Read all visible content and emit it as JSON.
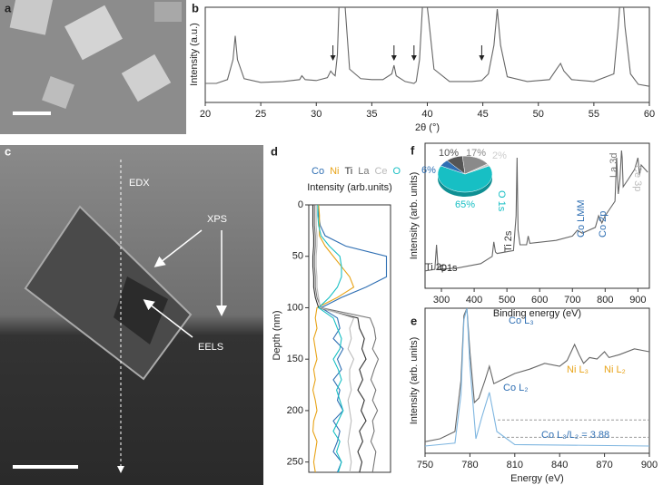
{
  "images": [
    {
      "label": "a"
    },
    {
      "label": "c",
      "annotations": [
        "EDX",
        "XPS",
        "EELS"
      ]
    }
  ],
  "chart_data": [
    {
      "type": "line",
      "panel_label": "b",
      "y_label": "Intensity (a.u.)",
      "x_label": "2θ (°)",
      "xlim": [
        20,
        60
      ],
      "xticks": [
        20,
        25,
        30,
        35,
        40,
        45,
        50,
        55,
        60
      ],
      "ylim": [
        0,
        1
      ],
      "arrows_x": [
        31.5,
        37,
        38.8,
        44.9
      ],
      "series": [
        {
          "color": "#666666",
          "x": [
            20,
            21,
            22,
            22.5,
            22.7,
            22.9,
            23.5,
            25,
            27,
            28.5,
            28.7,
            29,
            30,
            31,
            31.3,
            31.5,
            31.7,
            31.9,
            32.1,
            32.3,
            32.6,
            33,
            34,
            35,
            36,
            36.8,
            37,
            37.2,
            38,
            38.8,
            39,
            39.3,
            39.7,
            40.1,
            40.6,
            42,
            44,
            44.9,
            45.5,
            46,
            46.3,
            46.6,
            47.2,
            49,
            51,
            51.7,
            52,
            52.3,
            53,
            55,
            56.8,
            57.2,
            57.5,
            57.8,
            58.3,
            59,
            60
          ],
          "values": [
            0.2,
            0.2,
            0.24,
            0.45,
            0.7,
            0.45,
            0.25,
            0.21,
            0.22,
            0.24,
            0.28,
            0.24,
            0.23,
            0.26,
            0.33,
            0.3,
            0.28,
            0.5,
            1.2,
            1.3,
            1.0,
            0.35,
            0.25,
            0.24,
            0.24,
            0.3,
            0.39,
            0.28,
            0.22,
            0.2,
            0.22,
            0.45,
            1.3,
            0.9,
            0.35,
            0.22,
            0.22,
            0.23,
            0.3,
            0.6,
            0.98,
            0.6,
            0.27,
            0.22,
            0.24,
            0.36,
            0.41,
            0.33,
            0.24,
            0.22,
            0.3,
            0.8,
            1.3,
            0.8,
            0.3,
            0.19,
            0.17
          ]
        }
      ]
    },
    {
      "type": "line",
      "panel_label": "d",
      "title": "Intensity (arb.units)",
      "y_label": "Depth (nm)",
      "xlim": [
        0,
        1
      ],
      "ylim": [
        0,
        260
      ],
      "yticks": [
        0,
        50,
        100,
        150,
        200,
        250
      ],
      "y": [
        0,
        10,
        20,
        30,
        40,
        50,
        60,
        70,
        80,
        90,
        100,
        110,
        120,
        130,
        140,
        150,
        160,
        170,
        180,
        190,
        200,
        210,
        220,
        230,
        240,
        250,
        260
      ],
      "series": [
        {
          "name": "Co",
          "color": "#2f6fb3",
          "values": [
            0.12,
            0.12,
            0.14,
            0.2,
            0.45,
            0.95,
            0.95,
            0.95,
            0.7,
            0.4,
            0.15,
            0.35,
            0.38,
            0.3,
            0.42,
            0.35,
            0.4,
            0.3,
            0.38,
            0.35,
            0.42,
            0.3,
            0.38,
            0.35,
            0.3,
            0.4,
            0.35
          ]
        },
        {
          "name": "Ni",
          "color": "#e8a317",
          "values": [
            0.12,
            0.13,
            0.13,
            0.13,
            0.2,
            0.3,
            0.4,
            0.5,
            0.55,
            0.35,
            0.1,
            0.08,
            0.1,
            0.06,
            0.08,
            0.1,
            0.06,
            0.08,
            0.05,
            0.08,
            0.1,
            0.06,
            0.05,
            0.1,
            0.08,
            0.06,
            0.08
          ]
        },
        {
          "name": "Ti",
          "color": "#333333",
          "values": [
            0.05,
            0.05,
            0.05,
            0.06,
            0.06,
            0.05,
            0.05,
            0.06,
            0.06,
            0.08,
            0.12,
            0.6,
            0.62,
            0.68,
            0.65,
            0.7,
            0.62,
            0.66,
            0.6,
            0.68,
            0.64,
            0.7,
            0.62,
            0.66,
            0.6,
            0.65,
            0.62
          ]
        },
        {
          "name": "La",
          "color": "#777777",
          "values": [
            0.07,
            0.07,
            0.07,
            0.08,
            0.08,
            0.07,
            0.07,
            0.08,
            0.08,
            0.1,
            0.15,
            0.75,
            0.8,
            0.82,
            0.78,
            0.85,
            0.8,
            0.76,
            0.82,
            0.78,
            0.84,
            0.78,
            0.8,
            0.76,
            0.82,
            0.8,
            0.78
          ]
        },
        {
          "name": "Ce",
          "color": "#bbbbbb",
          "values": [
            0.09,
            0.09,
            0.09,
            0.1,
            0.1,
            0.09,
            0.09,
            0.1,
            0.1,
            0.12,
            0.14,
            0.55,
            0.5,
            0.52,
            0.48,
            0.55,
            0.5,
            0.5,
            0.52,
            0.48,
            0.5,
            0.52,
            0.5,
            0.48,
            0.5,
            0.52,
            0.5
          ]
        },
        {
          "name": "O",
          "color": "#17bfc4",
          "values": [
            0.11,
            0.11,
            0.12,
            0.15,
            0.25,
            0.38,
            0.4,
            0.4,
            0.35,
            0.25,
            0.12,
            0.3,
            0.35,
            0.4,
            0.38,
            0.3,
            0.36,
            0.4,
            0.34,
            0.38,
            0.42,
            0.36,
            0.3,
            0.38,
            0.34,
            0.4,
            0.36
          ]
        }
      ]
    },
    {
      "type": "line",
      "panel_label": "f",
      "y_label": "Intensity (arb. units)",
      "x_label": "Binding energy (eV)",
      "xlim": [
        250,
        935
      ],
      "xticks": [
        300,
        400,
        500,
        600,
        700,
        800,
        900
      ],
      "ylim": [
        0,
        1
      ],
      "annotations": [
        {
          "text": "C1s",
          "color": "#222222"
        },
        {
          "text": "Ti 2p",
          "color": "#333333"
        },
        {
          "text": "O 1s",
          "color": "#17bfc4"
        },
        {
          "text": "Ti 2s",
          "color": "#333333"
        },
        {
          "text": "Co LMM",
          "color": "#2f6fb3"
        },
        {
          "text": "Co 2p",
          "color": "#2f6fb3"
        },
        {
          "text": "La 3d",
          "color": "#777777"
        },
        {
          "text": "Ce 3p",
          "color": "#bbbbbb"
        }
      ],
      "series": [
        {
          "color": "#666666",
          "x": [
            250,
            280,
            285,
            290,
            350,
            420,
            455,
            460,
            465,
            470,
            520,
            528,
            531,
            534,
            540,
            560,
            565,
            570,
            650,
            700,
            715,
            730,
            770,
            780,
            790,
            800,
            830,
            835,
            840,
            845,
            850,
            852,
            855,
            870,
            890,
            900,
            905,
            910,
            930
          ],
          "values": [
            0.12,
            0.13,
            0.3,
            0.13,
            0.14,
            0.17,
            0.22,
            0.32,
            0.25,
            0.24,
            0.26,
            0.5,
            0.9,
            0.4,
            0.3,
            0.3,
            0.36,
            0.31,
            0.33,
            0.36,
            0.4,
            0.38,
            0.42,
            0.5,
            0.45,
            0.5,
            0.6,
            0.9,
            0.65,
            0.75,
            0.95,
            0.9,
            0.7,
            0.75,
            0.82,
            0.9,
            0.78,
            0.85,
            0.8
          ]
        }
      ]
    },
    {
      "type": "pie",
      "values": [
        65,
        6,
        10,
        17,
        2
      ],
      "value_labels": [
        "65%",
        "6%",
        "10%",
        "17%",
        "2%"
      ],
      "colors": [
        "#17bfc4",
        "#2f6fb3",
        "#555555",
        "#8a8a8a",
        "#cccccc"
      ]
    },
    {
      "type": "line",
      "panel_label": "e",
      "y_label": "Intensity (arb. units)",
      "x_label": "Energy (eV)",
      "xlim": [
        750,
        900
      ],
      "xticks": [
        750,
        780,
        810,
        840,
        870,
        900
      ],
      "ylim": [
        0,
        1
      ],
      "reference_lines": [
        0.23,
        0.11
      ],
      "annotations": [
        {
          "text": "Co L₃",
          "color": "#2f6fb3"
        },
        {
          "text": "Co L₂",
          "color": "#2f6fb3"
        },
        {
          "text": "Ni L₃",
          "color": "#e8a317"
        },
        {
          "text": "Ni L₂",
          "color": "#e8a317"
        },
        {
          "text": "Co L₃/L₂ = 3.88",
          "color": "#2f6fb3"
        }
      ],
      "series": [
        {
          "color": "#666666",
          "x": [
            750,
            760,
            770,
            774,
            776,
            778,
            780,
            783,
            786,
            790,
            793,
            796,
            800,
            810,
            820,
            830,
            840,
            845,
            850,
            853,
            856,
            860,
            865,
            870,
            873,
            880,
            890,
            900
          ],
          "values": [
            0.08,
            0.1,
            0.15,
            0.5,
            0.95,
            1.0,
            0.7,
            0.35,
            0.38,
            0.5,
            0.6,
            0.48,
            0.5,
            0.55,
            0.58,
            0.62,
            0.6,
            0.64,
            0.75,
            0.68,
            0.62,
            0.66,
            0.65,
            0.7,
            0.66,
            0.68,
            0.72,
            0.7
          ]
        },
        {
          "color": "#7fb6e0",
          "x": [
            750,
            770,
            774,
            776,
            778,
            780,
            784,
            788,
            793,
            798,
            810,
            900
          ],
          "values": [
            0.05,
            0.07,
            0.4,
            0.92,
            1.0,
            0.6,
            0.1,
            0.25,
            0.42,
            0.15,
            0.06,
            0.05
          ]
        }
      ]
    }
  ]
}
